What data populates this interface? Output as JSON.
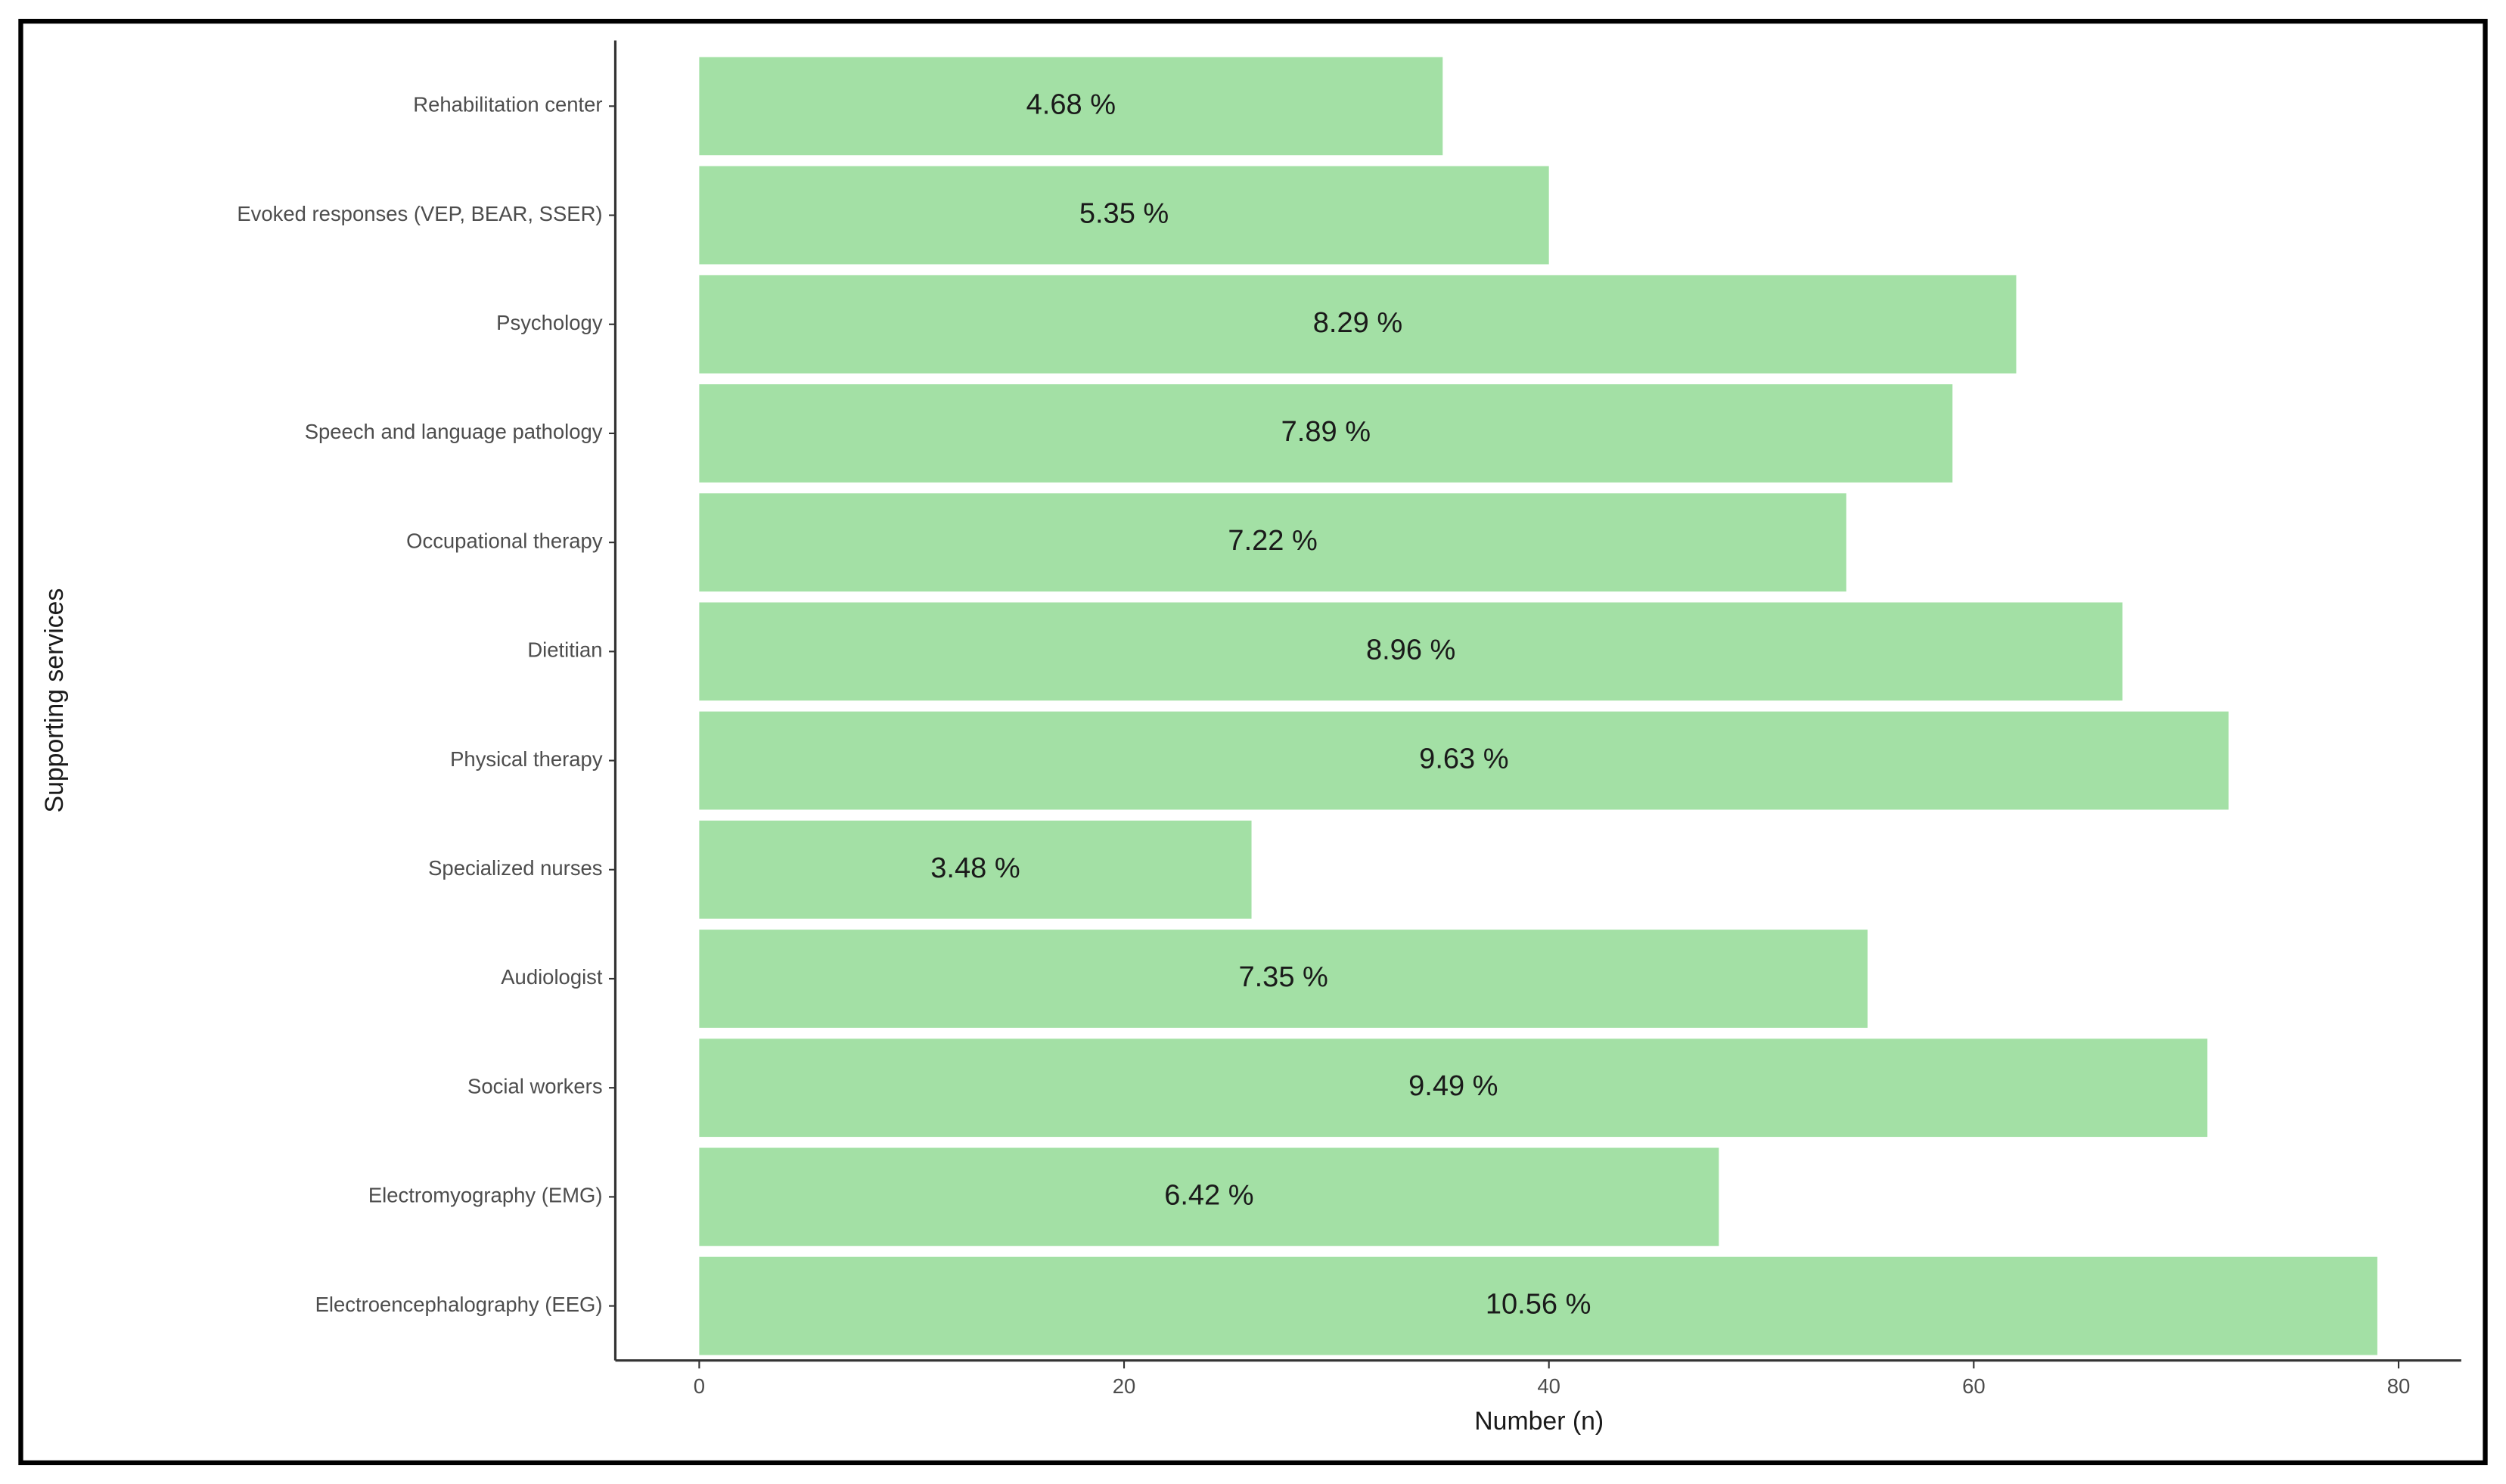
{
  "chart_data": {
    "type": "barh",
    "categories": [
      "Rehabilitation center",
      "Evoked responses (VEP, BEAR, SSER)",
      "Psychology",
      "Speech and language pathology",
      "Occupational therapy",
      "Dietitian",
      "Physical therapy",
      "Specialized nurses",
      "Audiologist",
      "Social workers",
      "Electromyography (EMG)",
      "Electroencephalography (EEG)"
    ],
    "values": [
      35,
      40,
      62,
      59,
      54,
      67,
      72,
      26,
      55,
      71,
      48,
      79
    ],
    "bar_labels": [
      "4.68 %",
      "5.35 %",
      "8.29 %",
      "7.89 %",
      "7.22 %",
      "8.96 %",
      "9.63 %",
      "3.48 %",
      "7.35 %",
      "9.49 %",
      "6.42 %",
      "10.56 %"
    ],
    "color": "#a3e0a5",
    "xlim": [
      -3.95,
      82.95
    ],
    "xticks": [
      0,
      20,
      40,
      60,
      80
    ],
    "x_label": "Number (n)",
    "y_label": "Supporting services"
  }
}
